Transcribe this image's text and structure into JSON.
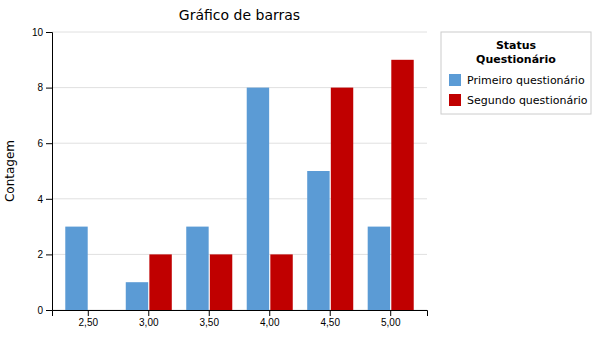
{
  "chart_data": {
    "type": "bar",
    "title": "Gráfico de barras",
    "ylabel": "Contagem",
    "categories": [
      "2,50",
      "3,00",
      "3,50",
      "4,00",
      "4,50",
      "5,00"
    ],
    "series": [
      {
        "name": "Primeiro questionário",
        "color": "#5B9BD5",
        "values": [
          3,
          1,
          3,
          8,
          5,
          3
        ]
      },
      {
        "name": "Segundo questionário",
        "color": "#C00000",
        "values": [
          0,
          2,
          2,
          2,
          8,
          9
        ]
      }
    ],
    "ylim": [
      0,
      10
    ],
    "yticks": [
      0,
      2,
      4,
      6,
      8,
      10
    ],
    "grid": true,
    "legend": "right",
    "legend_title": "Status\nQuestionário"
  }
}
